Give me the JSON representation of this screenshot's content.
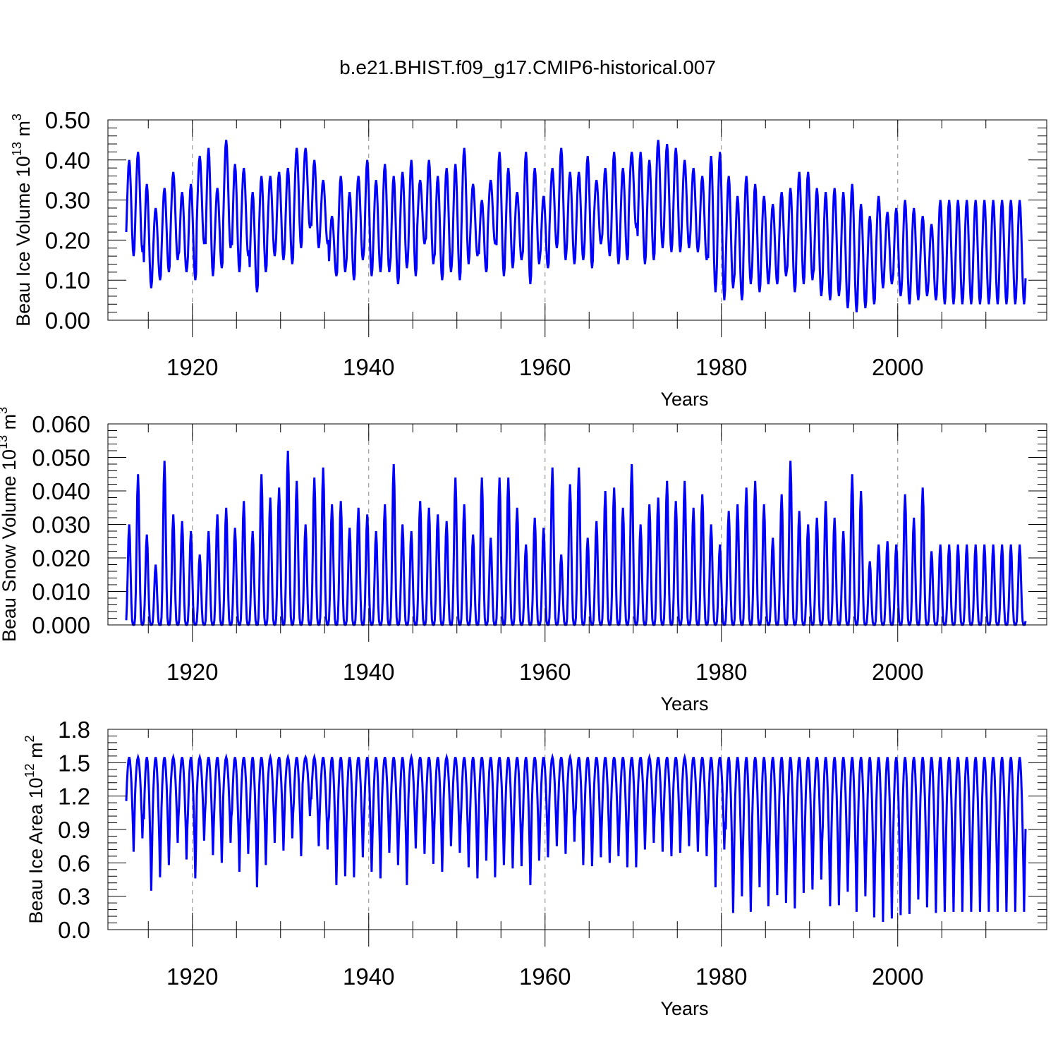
{
  "title": "b.e21.BHIST.f09_g17.CMIP6-historical.007",
  "line_color": "#0000ff",
  "chart_data": [
    {
      "type": "line",
      "ylabel_main": "Beau Ice Volume 10",
      "ylabel_exp": "13",
      "ylabel_unit": " m",
      "ylabel_unit_exp": "3",
      "xlabel": "Years",
      "xlim": [
        1912.5,
        2014.9
      ],
      "ylim": [
        0,
        0.5
      ],
      "xticks": [
        "1920",
        "1940",
        "1960",
        "1980",
        "2000"
      ],
      "yticks": [
        "0.00",
        "0.10",
        "0.20",
        "0.30",
        "0.40",
        "0.50"
      ],
      "series": [
        {
          "name": "Beau Ice Volume",
          "x_start": 1912.5,
          "step": 0.0833333,
          "annual_max": [
            0.4,
            0.42,
            0.34,
            0.28,
            0.33,
            0.37,
            0.32,
            0.34,
            0.41,
            0.43,
            0.33,
            0.45,
            0.39,
            0.38,
            0.32,
            0.36,
            0.36,
            0.37,
            0.38,
            0.43,
            0.43,
            0.4,
            0.35,
            0.26,
            0.36,
            0.32,
            0.36,
            0.4,
            0.35,
            0.39,
            0.36,
            0.37,
            0.4,
            0.35,
            0.4,
            0.36,
            0.38,
            0.39,
            0.43,
            0.34,
            0.3,
            0.35,
            0.42,
            0.38,
            0.32,
            0.42,
            0.38,
            0.31,
            0.38,
            0.43,
            0.37,
            0.37,
            0.41,
            0.35,
            0.38,
            0.42,
            0.38,
            0.42,
            0.42,
            0.4,
            0.45,
            0.44,
            0.43,
            0.4,
            0.38,
            0.36,
            0.41,
            0.42,
            0.36,
            0.31,
            0.36,
            0.34,
            0.31,
            0.29,
            0.32,
            0.33,
            0.37,
            0.37,
            0.33,
            0.32,
            0.33,
            0.32,
            0.34,
            0.29,
            0.26,
            0.31,
            0.27,
            0.28,
            0.3,
            0.28,
            0.26,
            0.24,
            0.3
          ],
          "annual_min": [
            0.16,
            0.17,
            0.08,
            0.1,
            0.12,
            0.15,
            0.12,
            0.1,
            0.19,
            0.11,
            0.13,
            0.18,
            0.12,
            0.16,
            0.07,
            0.12,
            0.16,
            0.15,
            0.14,
            0.18,
            0.23,
            0.18,
            0.19,
            0.11,
            0.12,
            0.1,
            0.15,
            0.11,
            0.12,
            0.12,
            0.09,
            0.13,
            0.11,
            0.19,
            0.14,
            0.1,
            0.12,
            0.1,
            0.14,
            0.16,
            0.12,
            0.19,
            0.11,
            0.13,
            0.15,
            0.09,
            0.14,
            0.13,
            0.18,
            0.15,
            0.14,
            0.15,
            0.13,
            0.19,
            0.16,
            0.14,
            0.15,
            0.23,
            0.14,
            0.15,
            0.18,
            0.17,
            0.17,
            0.18,
            0.17,
            0.15,
            0.07,
            0.05,
            0.08,
            0.05,
            0.09,
            0.07,
            0.09,
            0.09,
            0.11,
            0.07,
            0.09,
            0.1,
            0.06,
            0.05,
            0.06,
            0.03,
            0.02,
            0.03,
            0.04,
            0.08,
            0.09,
            0.06,
            0.04,
            0.05,
            0.06,
            0.05,
            0.04
          ]
        }
      ]
    },
    {
      "type": "line",
      "ylabel_main": "Beau Snow Volume 10",
      "ylabel_exp": "13",
      "ylabel_unit": " m",
      "ylabel_unit_exp": "3",
      "xlabel": "Years",
      "xlim": [
        1912.5,
        2014.9
      ],
      "ylim": [
        0,
        0.06
      ],
      "xticks": [
        "1920",
        "1940",
        "1960",
        "1980",
        "2000"
      ],
      "yticks": [
        "0.000",
        "0.010",
        "0.020",
        "0.030",
        "0.040",
        "0.050",
        "0.060"
      ],
      "series": [
        {
          "name": "Beau Snow Volume",
          "x_start": 1912.5,
          "step": 0.0833333,
          "annual_max": [
            0.03,
            0.045,
            0.027,
            0.018,
            0.049,
            0.033,
            0.031,
            0.028,
            0.021,
            0.028,
            0.033,
            0.035,
            0.029,
            0.037,
            0.028,
            0.045,
            0.038,
            0.041,
            0.052,
            0.043,
            0.03,
            0.044,
            0.047,
            0.036,
            0.037,
            0.029,
            0.035,
            0.033,
            0.028,
            0.036,
            0.048,
            0.03,
            0.028,
            0.037,
            0.035,
            0.033,
            0.031,
            0.044,
            0.036,
            0.027,
            0.044,
            0.026,
            0.044,
            0.044,
            0.035,
            0.024,
            0.032,
            0.029,
            0.047,
            0.021,
            0.042,
            0.047,
            0.026,
            0.031,
            0.04,
            0.041,
            0.035,
            0.048,
            0.03,
            0.036,
            0.038,
            0.043,
            0.037,
            0.043,
            0.035,
            0.039,
            0.03,
            0.024,
            0.034,
            0.036,
            0.041,
            0.043,
            0.036,
            0.026,
            0.039,
            0.049,
            0.034,
            0.03,
            0.032,
            0.037,
            0.032,
            0.028,
            0.045,
            0.04,
            0.019,
            0.024,
            0.025,
            0.024,
            0.039,
            0.032,
            0.041,
            0.022,
            0.024
          ],
          "annual_min": [
            0
          ]
        }
      ]
    },
    {
      "type": "line",
      "ylabel_main": "Beau Ice Area 10",
      "ylabel_exp": "12",
      "ylabel_unit": " m",
      "ylabel_unit_exp": "2",
      "xlabel": "Years",
      "xlim": [
        1912.5,
        2014.9
      ],
      "ylim": [
        0,
        1.8
      ],
      "xticks": [
        "1920",
        "1940",
        "1960",
        "1980",
        "2000"
      ],
      "yticks": [
        "0.0",
        "0.3",
        "0.6",
        "0.9",
        "1.2",
        "1.5",
        "1.8"
      ],
      "series": [
        {
          "name": "Beau Ice Area",
          "x_start": 1912.5,
          "step": 0.0833333,
          "annual_max": [
            1.55
          ],
          "annual_min": [
            0.7,
            0.82,
            0.35,
            0.47,
            0.58,
            0.78,
            0.63,
            0.46,
            0.8,
            0.67,
            0.6,
            0.78,
            0.52,
            0.68,
            0.38,
            0.58,
            0.78,
            0.71,
            0.82,
            0.66,
            1.02,
            0.75,
            0.72,
            0.4,
            0.48,
            0.47,
            0.65,
            0.52,
            0.46,
            0.69,
            0.58,
            0.4,
            0.73,
            0.68,
            0.59,
            0.52,
            0.75,
            0.69,
            0.56,
            0.46,
            0.62,
            0.47,
            0.58,
            0.55,
            0.57,
            0.4,
            0.62,
            0.65,
            0.75,
            0.68,
            0.79,
            0.58,
            0.57,
            0.65,
            0.6,
            0.66,
            0.56,
            0.56,
            0.72,
            0.78,
            0.7,
            0.66,
            0.69,
            0.75,
            0.7,
            0.66,
            0.38,
            0.72,
            0.15,
            0.3,
            0.16,
            0.38,
            0.21,
            0.31,
            0.24,
            0.19,
            0.33,
            0.36,
            0.45,
            0.21,
            0.22,
            0.34,
            0.16,
            0.3,
            0.11,
            0.07,
            0.1,
            0.13,
            0.14,
            0.27,
            0.2,
            0.15,
            0.16
          ]
        }
      ]
    }
  ]
}
